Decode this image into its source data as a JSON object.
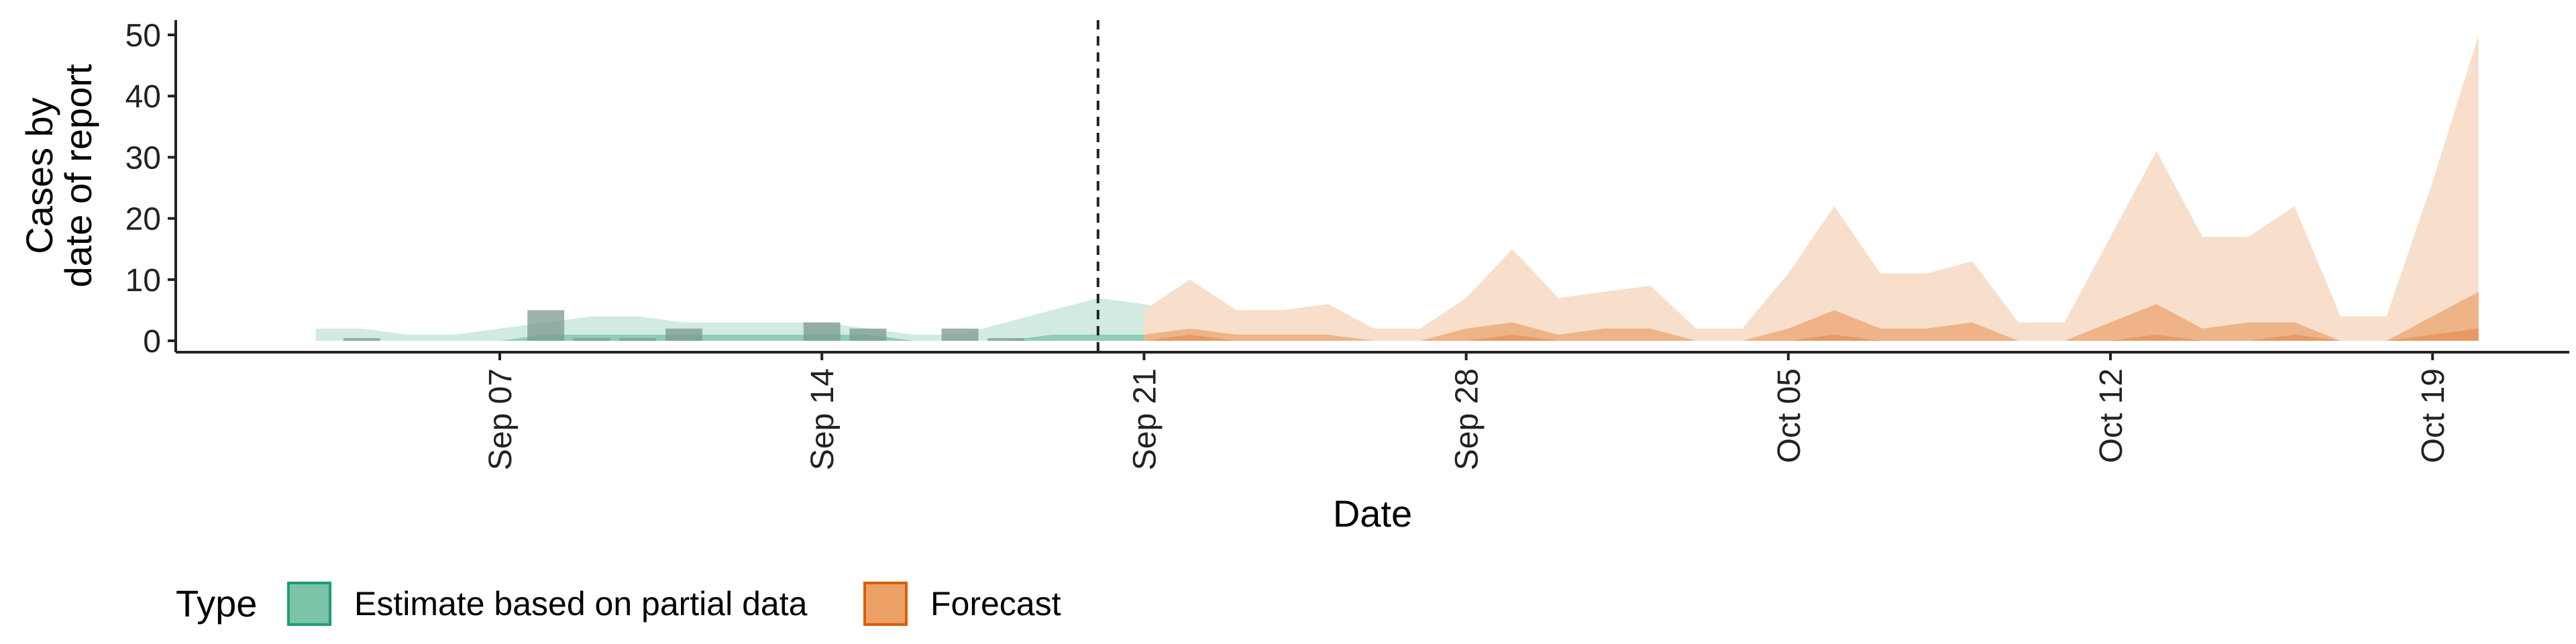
{
  "chart_data": {
    "type": "area",
    "title": "",
    "xlabel": "Date",
    "ylabel_lines": [
      "Cases by",
      "date of report"
    ],
    "ylim": [
      0,
      50
    ],
    "yticks": [
      0,
      10,
      20,
      30,
      40,
      50
    ],
    "xlim": [
      "2020-08-30",
      "2020-10-22"
    ],
    "xticks": [
      {
        "date": "2020-09-07",
        "label": "Sep 07"
      },
      {
        "date": "2020-09-14",
        "label": "Sep 14"
      },
      {
        "date": "2020-09-21",
        "label": "Sep 21"
      },
      {
        "date": "2020-09-28",
        "label": "Sep 28"
      },
      {
        "date": "2020-10-05",
        "label": "Oct 05"
      },
      {
        "date": "2020-10-12",
        "label": "Oct 12"
      },
      {
        "date": "2020-10-19",
        "label": "Oct 19"
      }
    ],
    "cutoff_date": "2020-09-20",
    "grid": false,
    "legend": {
      "title": "Type",
      "position": "bottom",
      "entries": [
        {
          "label": "Estimate based on partial data",
          "fill": "#7bc4a8",
          "border": "#1b9e77"
        },
        {
          "label": "Forecast",
          "fill": "#eba066",
          "border": "#d95f02"
        }
      ]
    },
    "colors": {
      "estimate_outer": "#d2ebe1",
      "estimate_inner": "#8fcdb5",
      "forecast_outer": "#f7dfcb",
      "forecast_inner": "#efb388",
      "forecast_core": "#e69a62",
      "observed_bar": "#7a9a8c"
    },
    "observed_bars": [
      {
        "date": "2020-09-04",
        "value": 0
      },
      {
        "date": "2020-09-08",
        "value": 5
      },
      {
        "date": "2020-09-09",
        "value": 0
      },
      {
        "date": "2020-09-10",
        "value": 0
      },
      {
        "date": "2020-09-11",
        "value": 2
      },
      {
        "date": "2020-09-14",
        "value": 3
      },
      {
        "date": "2020-09-15",
        "value": 2
      },
      {
        "date": "2020-09-17",
        "value": 2
      },
      {
        "date": "2020-09-18",
        "value": 0
      }
    ],
    "series": [
      {
        "name": "Estimate based on partial data",
        "start_date": "2020-09-03",
        "upper_outer": [
          2,
          2,
          1,
          1,
          2,
          3,
          4,
          4,
          3,
          3,
          3,
          3,
          2,
          1,
          1,
          3,
          5,
          7,
          6,
          4,
          4,
          4,
          2,
          1,
          1
        ],
        "upper_inner": [
          0,
          0,
          0,
          0,
          0,
          1,
          1,
          1,
          1,
          1,
          1,
          1,
          1,
          0,
          0,
          0,
          1,
          1,
          1,
          1,
          1,
          1,
          1,
          0,
          0
        ]
      },
      {
        "name": "Forecast",
        "start_date": "2020-09-21",
        "upper_outer": [
          5,
          10,
          5,
          5,
          6,
          2,
          2,
          7,
          15,
          7,
          8,
          9,
          2,
          2,
          11,
          22,
          11,
          11,
          13,
          3,
          3,
          17,
          31,
          17,
          17,
          22,
          4,
          4,
          26,
          50
        ],
        "upper_inner": [
          1,
          2,
          1,
          1,
          1,
          0,
          0,
          2,
          3,
          1,
          2,
          2,
          0,
          0,
          2,
          5,
          2,
          2,
          3,
          0,
          0,
          3,
          6,
          2,
          3,
          3,
          0,
          0,
          4,
          8
        ],
        "upper_core": [
          0,
          1,
          0,
          0,
          0,
          0,
          0,
          0,
          1,
          0,
          0,
          0,
          0,
          0,
          0,
          1,
          0,
          0,
          0,
          0,
          0,
          0,
          1,
          0,
          0,
          1,
          0,
          0,
          1,
          2
        ]
      }
    ]
  }
}
